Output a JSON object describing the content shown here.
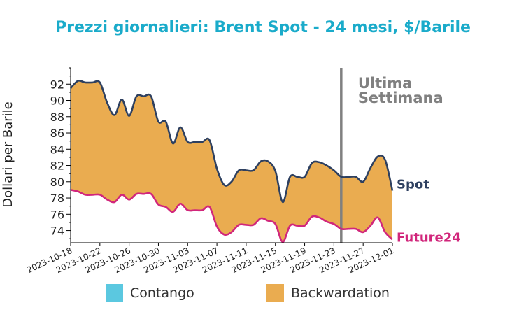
{
  "chart_data": {
    "type": "area",
    "title": "Prezzi giornalieri: Brent Spot - 24 mesi, $/Barile",
    "ylabel": "Dollari per Barile",
    "xlabel": "",
    "x_start": "2023-10-18",
    "x_end": "2023-12-01",
    "ylim": [
      72.5,
      94
    ],
    "yticks": [
      74,
      76,
      78,
      80,
      82,
      84,
      86,
      88,
      90,
      92
    ],
    "xticks": [
      "2023-10-18",
      "2023-10-22",
      "2023-10-26",
      "2023-10-30",
      "2023-11-03",
      "2023-11-07",
      "2023-11-11",
      "2023-11-15",
      "2023-11-19",
      "2023-11-23",
      "2023-11-27",
      "2023-12-01"
    ],
    "grid": false,
    "dates": [
      "2023-10-18",
      "2023-10-19",
      "2023-10-20",
      "2023-10-21",
      "2023-10-22",
      "2023-10-23",
      "2023-10-24",
      "2023-10-25",
      "2023-10-26",
      "2023-10-27",
      "2023-10-28",
      "2023-10-29",
      "2023-10-30",
      "2023-10-31",
      "2023-11-01",
      "2023-11-02",
      "2023-11-03",
      "2023-11-04",
      "2023-11-05",
      "2023-11-06",
      "2023-11-07",
      "2023-11-08",
      "2023-11-09",
      "2023-11-10",
      "2023-11-11",
      "2023-11-12",
      "2023-11-13",
      "2023-11-14",
      "2023-11-15",
      "2023-11-16",
      "2023-11-17",
      "2023-11-18",
      "2023-11-19",
      "2023-11-20",
      "2023-11-21",
      "2023-11-22",
      "2023-11-23",
      "2023-11-24",
      "2023-11-25",
      "2023-11-26",
      "2023-11-27",
      "2023-11-28",
      "2023-11-29",
      "2023-11-30",
      "2023-12-01"
    ],
    "series": [
      {
        "name": "Spot",
        "color": "#2e4060",
        "values": [
          91.5,
          92.4,
          92.2,
          92.2,
          92.2,
          89.7,
          88.2,
          90.1,
          88.1,
          90.5,
          90.5,
          90.5,
          87.4,
          87.4,
          84.7,
          86.7,
          84.9,
          84.9,
          84.9,
          85.1,
          81.6,
          79.6,
          80.0,
          81.4,
          81.4,
          81.4,
          82.5,
          82.5,
          81.3,
          77.5,
          80.6,
          80.6,
          80.6,
          82.3,
          82.4,
          82.0,
          81.4,
          80.6,
          80.6,
          80.6,
          80.0,
          81.7,
          83.1,
          82.7,
          78.9
        ]
      },
      {
        "name": "Future24",
        "color": "#d1267b",
        "values": [
          79.0,
          78.8,
          78.4,
          78.4,
          78.4,
          77.8,
          77.5,
          78.4,
          77.8,
          78.5,
          78.5,
          78.5,
          77.2,
          76.9,
          76.3,
          77.3,
          76.5,
          76.5,
          76.5,
          76.9,
          74.5,
          73.5,
          73.8,
          74.7,
          74.7,
          74.7,
          75.5,
          75.2,
          74.8,
          72.6,
          74.6,
          74.6,
          74.6,
          75.7,
          75.6,
          75.1,
          74.8,
          74.2,
          74.2,
          74.2,
          73.8,
          74.6,
          75.6,
          73.8,
          72.9
        ]
      }
    ],
    "fill_between": {
      "contango_color": "#5bc8e0",
      "backwardation_color": "#eaac50"
    },
    "vline": {
      "x": "2023-11-24",
      "color": "#808080",
      "label": "Ultima\nSettimana"
    },
    "legend": {
      "placement": "bottom",
      "entries": [
        "Contango",
        "Backwardation"
      ]
    },
    "title_color": "#1aabca"
  }
}
